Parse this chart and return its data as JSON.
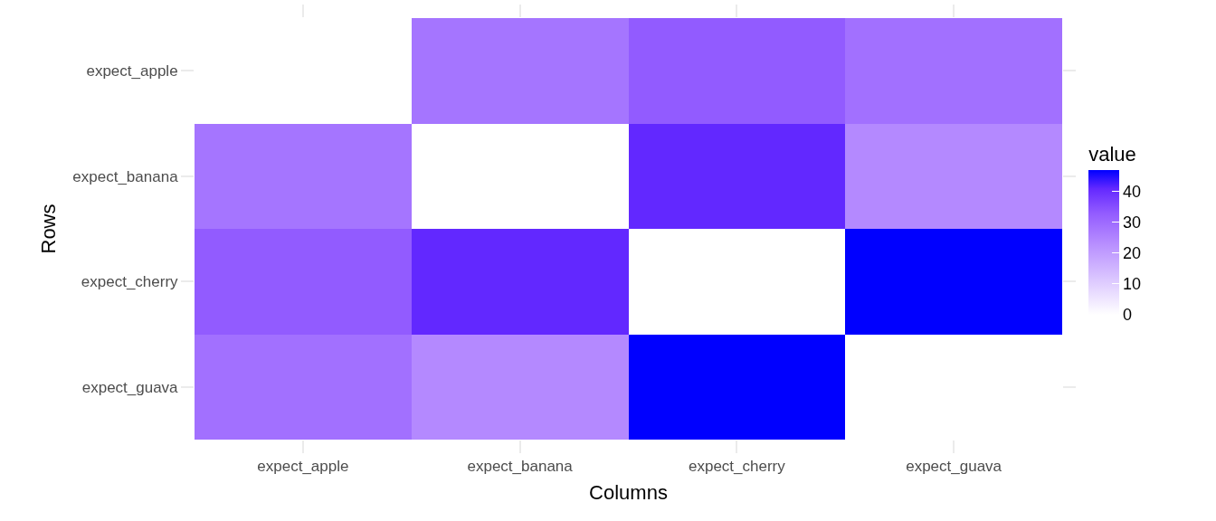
{
  "chart_data": {
    "type": "heatmap",
    "xlabel": "Columns",
    "ylabel": "Rows",
    "clabel": "value",
    "categories": [
      "expect_apple",
      "expect_banana",
      "expect_cherry",
      "expect_guava"
    ],
    "y_categories": [
      "expect_apple",
      "expect_banana",
      "expect_cherry",
      "expect_guava"
    ],
    "cells": [
      [
        null,
        28,
        33,
        29
      ],
      [
        28,
        0,
        41,
        24
      ],
      [
        33,
        41,
        0,
        47
      ],
      [
        29,
        24,
        47,
        null
      ]
    ],
    "clim": [
      0,
      47
    ],
    "cticks": [
      0,
      10,
      20,
      30,
      40
    ]
  }
}
